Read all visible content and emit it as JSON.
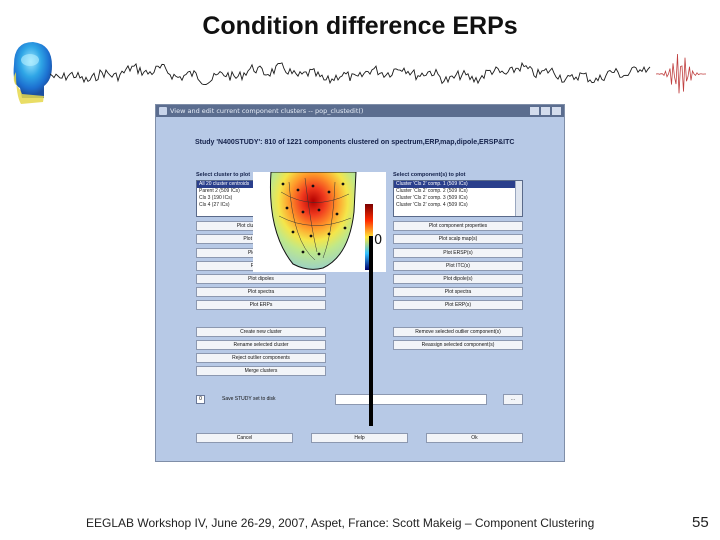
{
  "slide": {
    "title": "Condition difference ERPs",
    "footer": "EEGLAB Workshop IV, June 26-29, 2007, Aspet, France: Scott Makeig – Component Clustering",
    "page_number": "55"
  },
  "window": {
    "title": "View and edit current component clusters -- pop_clustedit()",
    "study_heading": "Study 'N400STUDY': 810 of 1221 components clustered on spectrum,ERP,map,dipole,ERSP&ITC",
    "left_label": "Select cluster to plot",
    "right_label": "Select component(s) to plot",
    "clusters": [
      "All 20 cluster centroids",
      "Parent 2 (509 ICs)",
      "Cls 3 (190 ICs)",
      "Cls 4 (27 ICs)"
    ],
    "components": [
      "Cluster 'Cls 2' comp. 1 (509 ICs)",
      "Cluster 'Cls 2' comp. 2 (509 ICs)",
      "Cluster 'Cls 2' comp. 3 (509 ICs)",
      "Cluster 'Cls 2' comp. 4 (509 ICs)"
    ],
    "left_buttons": [
      "Plot cluster properties",
      "Plot scalp maps",
      "Plot ERSPs",
      "Plot ITCs",
      "Plot dipoles",
      "Plot spectra",
      "Plot ERPs"
    ],
    "right_buttons": [
      "Plot component properties",
      "Plot scalp map(s)",
      "Plot ERSP(s)",
      "Plot ITC(s)",
      "Plot dipole(s)",
      "Plot spectra",
      "Plot ERP(s)"
    ],
    "edit_left_buttons": [
      "Create new cluster",
      "Rename selected cluster",
      "Reject outlier components",
      "Merge clusters"
    ],
    "edit_right_buttons": [
      "Remove selected outlier component(s)",
      "Reassign selected component(s)"
    ],
    "save_label": "Save STUDY set to disk",
    "checkbox_mark": "0",
    "browse_label": "...",
    "bottom_buttons": [
      "Cancel",
      "Help",
      "Ok"
    ],
    "topo_tick": "0"
  },
  "colors": {
    "window_bg": "#b7c9e6",
    "titlebar": "#5b6d8f",
    "selection": "#2a3f8c"
  }
}
